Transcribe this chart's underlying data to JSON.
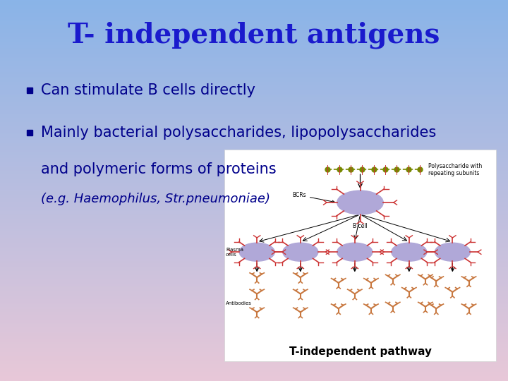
{
  "title": "T- independent antigens",
  "title_color": "#1a1acd",
  "title_fontsize": 28,
  "bullet1": "Can stimulate B cells directly",
  "bullet2": "Mainly bacterial polysaccharides, lipopolysaccharides",
  "bullet2b": "and polymeric forms of proteins",
  "bullet3": "(e.g. Haemophilus, Str.pneumoniae)",
  "text_color": "#00008B",
  "bullet_color": "#00008B",
  "text_fontsize": 15,
  "italic_fontsize": 13,
  "bg_top_color": "#8ab4e8",
  "bg_bottom_color": "#e8c8d8",
  "image_caption": "T-independent pathway",
  "image_caption_fontsize": 11,
  "cell_color": "#b0a8d8",
  "bcr_color": "#cc3333",
  "antibody_color": "#c87840",
  "poly_color": "#778800",
  "arrow_color": "#222222"
}
